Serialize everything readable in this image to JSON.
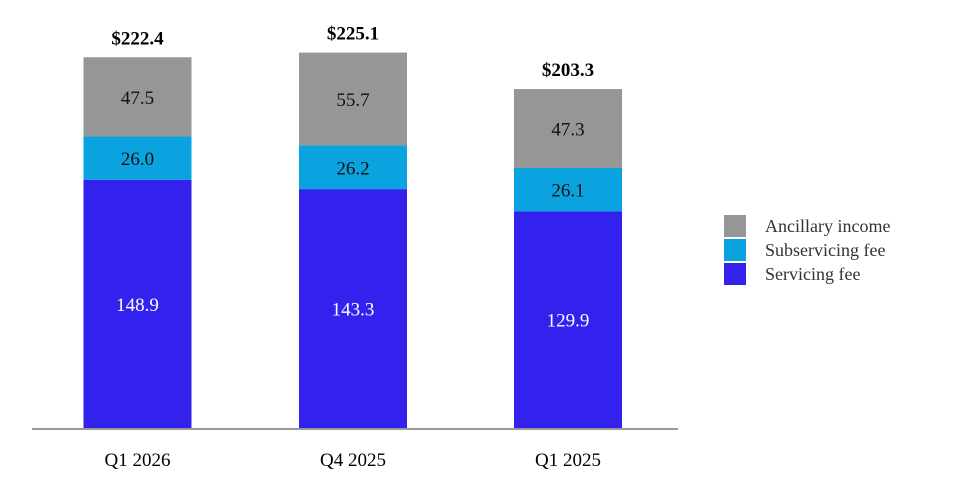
{
  "chart_data": {
    "type": "bar",
    "stacked": true,
    "categories": [
      "Q1 2026",
      "Q4 2025",
      "Q1 2025"
    ],
    "totals": [
      "$222.4",
      "$225.1",
      "$203.3"
    ],
    "series": [
      {
        "name": "Servicing fee",
        "values": [
          148.9,
          143.3,
          129.9
        ],
        "color": "#3322ee",
        "label_color": "#ffffff"
      },
      {
        "name": "Subservicing fee",
        "values": [
          26.0,
          26.2,
          26.1
        ],
        "color": "#0aa3e0",
        "label_color": "#111111"
      },
      {
        "name": "Ancillary income",
        "values": [
          47.5,
          55.7,
          47.3
        ],
        "color": "#969696",
        "label_color": "#111111"
      }
    ],
    "legend_order": [
      "Ancillary income",
      "Subservicing fee",
      "Servicing fee"
    ],
    "legend_position": "right",
    "grid": false,
    "ylim": [
      0,
      230
    ],
    "title": "",
    "xlabel": "",
    "ylabel": ""
  }
}
